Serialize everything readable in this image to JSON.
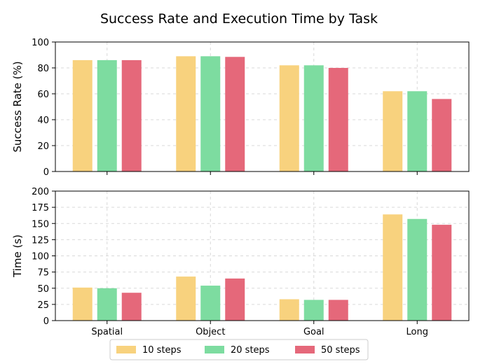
{
  "chart_data": {
    "title": "Success Rate and Execution Time by Task",
    "categories": [
      "Spatial",
      "Object",
      "Goal",
      "Long"
    ],
    "series_names": [
      "10 steps",
      "20 steps",
      "50 steps"
    ],
    "colors": [
      "#f8d27e",
      "#7ddca0",
      "#e5687a"
    ],
    "legend_position": "bottom-center",
    "grid": true,
    "panels": [
      {
        "type": "bar",
        "ylabel": "Success Rate (%)",
        "ylim": [
          0,
          100
        ],
        "yticks": [
          0,
          20,
          40,
          60,
          80,
          100
        ],
        "series": [
          {
            "name": "10 steps",
            "values": [
              86,
              89,
              82,
              62
            ]
          },
          {
            "name": "20 steps",
            "values": [
              86,
              89,
              82,
              62
            ]
          },
          {
            "name": "50 steps",
            "values": [
              86,
              88.5,
              80,
              56
            ]
          }
        ]
      },
      {
        "type": "bar",
        "ylabel": "Time (s)",
        "ylim": [
          0,
          200
        ],
        "yticks": [
          0,
          25,
          50,
          75,
          100,
          125,
          150,
          175,
          200
        ],
        "series": [
          {
            "name": "10 steps",
            "values": [
              51,
              68,
              33,
              164
            ]
          },
          {
            "name": "20 steps",
            "values": [
              50,
              54,
              32,
              157
            ]
          },
          {
            "name": "50 steps",
            "values": [
              43,
              65,
              32,
              148
            ]
          }
        ]
      }
    ]
  }
}
